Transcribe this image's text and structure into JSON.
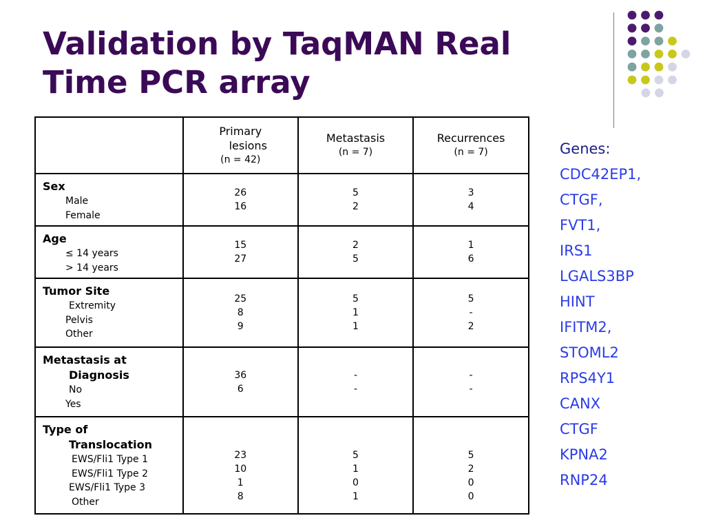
{
  "title": {
    "line1": "Validation by TaqMAN Real",
    "line2": "Time PCR array"
  },
  "colors": {
    "title": "#3b0a57",
    "purple": "#4b1a6e",
    "teal": "#7ea3a3",
    "yellow": "#c8c81c",
    "lavender": "#d5d5e8",
    "gene_text": "#2a3be8"
  },
  "decoration": {
    "rows": [
      [
        "purple",
        "purple",
        "purple"
      ],
      [
        "purple",
        "purple",
        "teal"
      ],
      [
        "purple",
        "teal",
        "teal",
        "yellow"
      ],
      [
        "teal",
        "teal",
        "yellow",
        "yellow",
        "lavender"
      ],
      [
        "teal",
        "yellow",
        "yellow",
        "lavender"
      ],
      [
        "yellow",
        "yellow",
        "lavender",
        "lavender"
      ],
      [
        "lavender",
        "lavender"
      ]
    ]
  },
  "table": {
    "headers": [
      {
        "label_line1": "Primary",
        "label_line2": "lesions",
        "sub": "(n = 42)"
      },
      {
        "label_line1": "Metastasis",
        "sub": "(n = 7)"
      },
      {
        "label_line1": "Recurrences",
        "sub": "(n = 7)"
      }
    ],
    "groups": [
      {
        "title": "Sex",
        "items": [
          "Male",
          "Female"
        ],
        "primary": [
          "26",
          "16"
        ],
        "metastasis": [
          "5",
          "2"
        ],
        "recurrences": [
          "3",
          "4"
        ]
      },
      {
        "title": "Age",
        "items": [
          "≤ 14 years",
          "> 14 years"
        ],
        "primary": [
          "15",
          "27"
        ],
        "metastasis": [
          "2",
          "5"
        ],
        "recurrences": [
          "1",
          "6"
        ]
      },
      {
        "title": "Tumor Site",
        "items": [
          "Extremity",
          "Pelvis",
          "Other"
        ],
        "primary": [
          "25",
          "8",
          "9"
        ],
        "metastasis": [
          "5",
          "1",
          "1"
        ],
        "recurrences": [
          "5",
          "-",
          "2"
        ]
      },
      {
        "title_line1": "Metastasis at",
        "title_line2": "Diagnosis",
        "items": [
          "No",
          "Yes"
        ],
        "primary": [
          "36",
          "6"
        ],
        "metastasis": [
          "-",
          "-"
        ],
        "recurrences": [
          "-",
          "-"
        ]
      },
      {
        "title_line1": "Type of",
        "title_line2": "Translocation",
        "items": [
          "EWS/Fli1 Type 1",
          "EWS/Fli1 Type 2",
          "EWS/Fli1 Type 3",
          "Other"
        ],
        "primary": [
          "23",
          "10",
          "1",
          "8"
        ],
        "metastasis": [
          "5",
          "1",
          "0",
          "1"
        ],
        "recurrences": [
          "5",
          "2",
          "0",
          "0"
        ]
      }
    ]
  },
  "genes": {
    "heading": "Genes:",
    "list": [
      "CDC42EP1,",
      "CTGF,",
      "FVT1,",
      "IRS1",
      "LGALS3BP",
      "HINT",
      "IFITM2,",
      "STOML2",
      "RPS4Y1",
      "CANX",
      "CTGF",
      "KPNA2",
      "RNP24"
    ]
  }
}
